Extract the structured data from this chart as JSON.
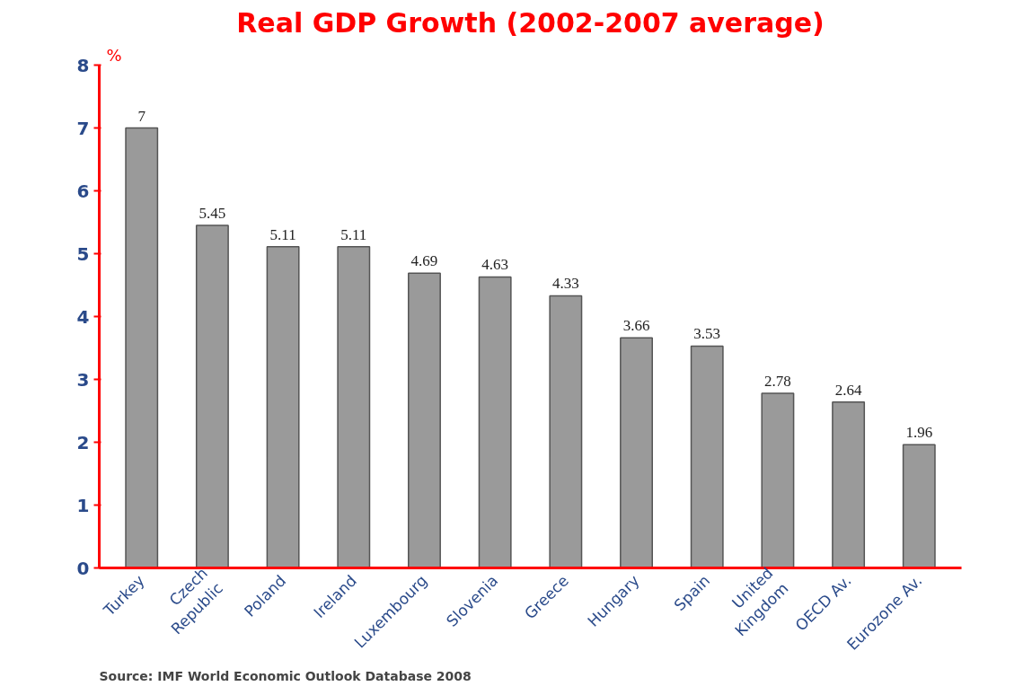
{
  "chart_data": {
    "type": "bar",
    "title": "Real GDP Growth (2002-2007 average)",
    "ylabel": "%",
    "categories": [
      "Turkey",
      "Czech\nRepublic",
      "Poland",
      "Ireland",
      "Luxembourg",
      "Slovenia",
      "Greece",
      "Hungary",
      "Spain",
      "United\nKingdom",
      "OECD Av.",
      "Eurozone Av."
    ],
    "values": [
      7,
      5.45,
      5.11,
      5.11,
      4.69,
      4.63,
      4.33,
      3.66,
      3.53,
      2.78,
      2.64,
      1.96
    ],
    "color": "#9a9a9a",
    "ylim": [
      0,
      8
    ],
    "yticks": [
      0,
      1,
      2,
      3,
      4,
      5,
      6,
      7,
      8
    ],
    "grid": false,
    "data_labels": true,
    "annotations": [
      "Source: IMF World Economic Outlook Database 2008"
    ]
  }
}
